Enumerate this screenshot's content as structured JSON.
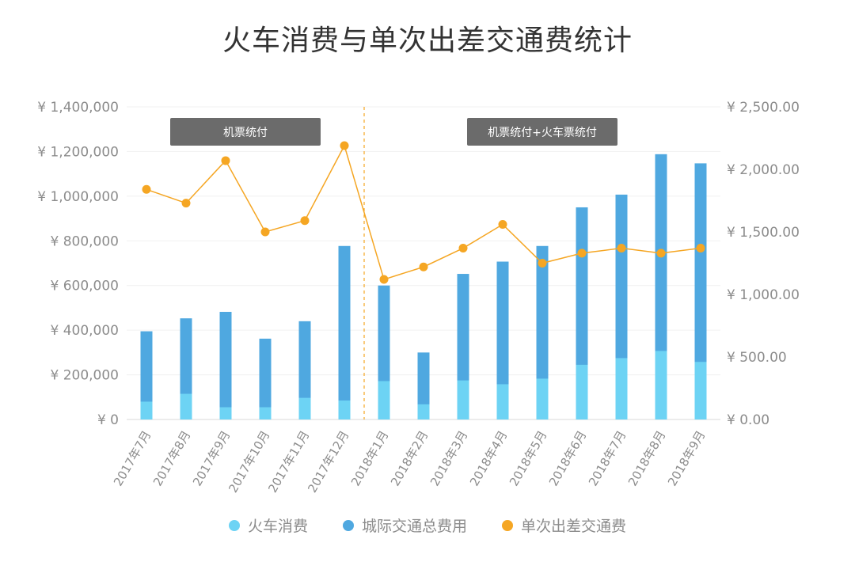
{
  "chart_data": {
    "type": "bar",
    "title": "火车消费与单次出差交通费统计",
    "categories": [
      "2017年7月",
      "2017年8月",
      "2017年9月",
      "2017年10月",
      "2017年11月",
      "2017年12月",
      "2018年1月",
      "2018年2月",
      "2018年3月",
      "2018年4月",
      "2018年5月",
      "2018年6月",
      "2018年7月",
      "2018年8月",
      "2018年9月"
    ],
    "series": [
      {
        "name": "火车消费",
        "axis": "left",
        "color": "#6dd3f4",
        "values": [
          80000,
          115000,
          55000,
          55000,
          97000,
          85000,
          172000,
          68000,
          175000,
          158000,
          183000,
          245000,
          275000,
          307000,
          258000
        ]
      },
      {
        "name": "城际交通总费用",
        "axis": "left",
        "color": "#4fa8e0",
        "values": [
          395000,
          453000,
          482000,
          362000,
          440000,
          777000,
          600000,
          300000,
          652000,
          707000,
          777000,
          950000,
          1007000,
          1188000,
          1147000
        ]
      },
      {
        "name": "单次出差交通费",
        "axis": "right",
        "type": "line",
        "color": "#f5a623",
        "values": [
          1840,
          1730,
          2070,
          1500,
          1590,
          2190,
          1120,
          1220,
          1370,
          1560,
          1250,
          1330,
          1370,
          1330,
          1370
        ]
      }
    ],
    "ylim_left": [
      0,
      1400000
    ],
    "ylim_right": [
      0,
      2500
    ],
    "yticks_left": [
      "¥ 1,400,000",
      "¥ 1,200,000",
      "¥ 1,000,000",
      "¥ 800,000",
      "¥ 600,000",
      "¥ 400,000",
      "¥ 200,000",
      "¥ 0"
    ],
    "yticks_right": [
      "¥ 2,500.00",
      "¥ 2,000.00",
      "¥ 1,500.00",
      "¥ 1,000.00",
      "¥ 500.00",
      "¥ 0.00"
    ],
    "annotations": [
      {
        "text": "机票统付",
        "span": [
          0,
          5
        ]
      },
      {
        "text": "机票统付+火车票统付",
        "span": [
          6,
          14
        ]
      }
    ],
    "divider_after_index": 5,
    "legend_position": "bottom",
    "grid": true
  }
}
